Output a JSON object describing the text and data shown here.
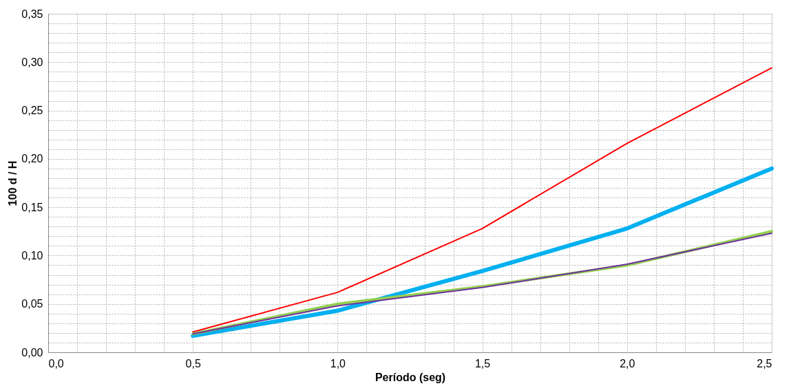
{
  "chart_data": {
    "type": "line",
    "xlabel": "Período (seg)",
    "ylabel": "100 d / H",
    "x": [
      0.5,
      1.0,
      1.5,
      2.0,
      2.5
    ],
    "series": [
      {
        "color": "#ff0000",
        "values": [
          0.021,
          0.062,
          0.128,
          0.216,
          0.294
        ]
      },
      {
        "color": "#00b0f0",
        "values": [
          0.017,
          0.043,
          0.084,
          0.128,
          0.19
        ]
      },
      {
        "color": "#92d050",
        "values": [
          0.019,
          0.05,
          0.068,
          0.09,
          0.125
        ]
      },
      {
        "color": "#7030a0",
        "values": [
          0.019,
          0.048,
          0.067,
          0.091,
          0.123
        ]
      }
    ],
    "xlim": [
      0,
      2.5
    ],
    "ylim": [
      0,
      0.35
    ],
    "xticks": [
      {
        "value": 0,
        "label": "0,0"
      },
      {
        "value": 0.1,
        "label": null
      },
      {
        "value": 0.2,
        "label": null
      },
      {
        "value": 0.3,
        "label": null
      },
      {
        "value": 0.4,
        "label": null
      },
      {
        "value": 0.5,
        "label": "0,5"
      },
      {
        "value": 0.6,
        "label": null
      },
      {
        "value": 0.7,
        "label": null
      },
      {
        "value": 0.8,
        "label": null
      },
      {
        "value": 0.9,
        "label": null
      },
      {
        "value": 1.0,
        "label": "1,0"
      },
      {
        "value": 1.1,
        "label": null
      },
      {
        "value": 1.2,
        "label": null
      },
      {
        "value": 1.3,
        "label": null
      },
      {
        "value": 1.4,
        "label": null
      },
      {
        "value": 1.5,
        "label": "1,5"
      },
      {
        "value": 1.6,
        "label": null
      },
      {
        "value": 1.7,
        "label": null
      },
      {
        "value": 1.8,
        "label": null
      },
      {
        "value": 1.9,
        "label": null
      },
      {
        "value": 2.0,
        "label": "2,0"
      },
      {
        "value": 2.1,
        "label": null
      },
      {
        "value": 2.2,
        "label": null
      },
      {
        "value": 2.3,
        "label": null
      },
      {
        "value": 2.4,
        "label": null
      },
      {
        "value": 2.5,
        "label": "2,5"
      }
    ],
    "yticks": [
      {
        "value": 0,
        "label": "0,00"
      },
      {
        "value": 0.01,
        "label": null
      },
      {
        "value": 0.02,
        "label": null
      },
      {
        "value": 0.03,
        "label": null
      },
      {
        "value": 0.04,
        "label": null
      },
      {
        "value": 0.05,
        "label": "0,05"
      },
      {
        "value": 0.06,
        "label": null
      },
      {
        "value": 0.07,
        "label": null
      },
      {
        "value": 0.08,
        "label": null
      },
      {
        "value": 0.09,
        "label": null
      },
      {
        "value": 0.1,
        "label": "0,10"
      },
      {
        "value": 0.11,
        "label": null
      },
      {
        "value": 0.12,
        "label": null
      },
      {
        "value": 0.13,
        "label": null
      },
      {
        "value": 0.14,
        "label": null
      },
      {
        "value": 0.15,
        "label": "0,15"
      },
      {
        "value": 0.16,
        "label": null
      },
      {
        "value": 0.17,
        "label": null
      },
      {
        "value": 0.18,
        "label": null
      },
      {
        "value": 0.19,
        "label": null
      },
      {
        "value": 0.2,
        "label": "0,20"
      },
      {
        "value": 0.21,
        "label": null
      },
      {
        "value": 0.22,
        "label": null
      },
      {
        "value": 0.23,
        "label": null
      },
      {
        "value": 0.24,
        "label": null
      },
      {
        "value": 0.25,
        "label": "0,25"
      },
      {
        "value": 0.26,
        "label": null
      },
      {
        "value": 0.27,
        "label": null
      },
      {
        "value": 0.28,
        "label": null
      },
      {
        "value": 0.29,
        "label": null
      },
      {
        "value": 0.3,
        "label": "0,30"
      },
      {
        "value": 0.31,
        "label": null
      },
      {
        "value": 0.32,
        "label": null
      },
      {
        "value": 0.33,
        "label": null
      },
      {
        "value": 0.34,
        "label": null
      },
      {
        "value": 0.35,
        "label": "0,35"
      }
    ],
    "grid": true,
    "marker": "none",
    "line_style": "solid"
  }
}
